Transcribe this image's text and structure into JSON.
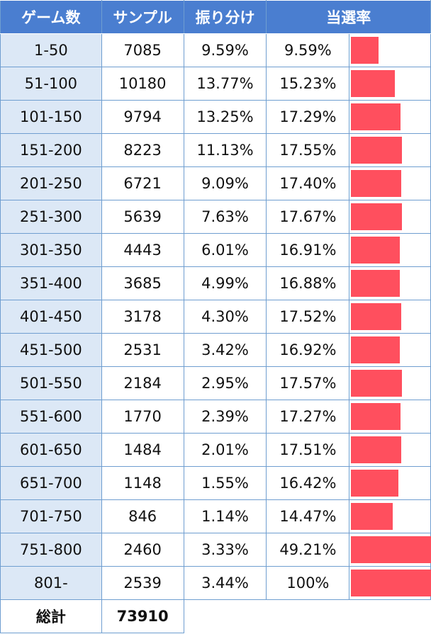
{
  "table": {
    "headers": [
      "ゲーム数",
      "サンプル",
      "振り分け",
      "当選率"
    ],
    "rows": [
      {
        "range": "1-50",
        "sample": "7085",
        "share": "9.59%",
        "rate": "9.59%",
        "rate_value": 9.59
      },
      {
        "range": "51-100",
        "sample": "10180",
        "share": "13.77%",
        "rate": "15.23%",
        "rate_value": 15.23
      },
      {
        "range": "101-150",
        "sample": "9794",
        "share": "13.25%",
        "rate": "17.29%",
        "rate_value": 17.29
      },
      {
        "range": "151-200",
        "sample": "8223",
        "share": "11.13%",
        "rate": "17.55%",
        "rate_value": 17.55
      },
      {
        "range": "201-250",
        "sample": "6721",
        "share": "9.09%",
        "rate": "17.40%",
        "rate_value": 17.4
      },
      {
        "range": "251-300",
        "sample": "5639",
        "share": "7.63%",
        "rate": "17.67%",
        "rate_value": 17.67
      },
      {
        "range": "301-350",
        "sample": "4443",
        "share": "6.01%",
        "rate": "16.91%",
        "rate_value": 16.91
      },
      {
        "range": "351-400",
        "sample": "3685",
        "share": "4.99%",
        "rate": "16.88%",
        "rate_value": 16.88
      },
      {
        "range": "401-450",
        "sample": "3178",
        "share": "4.30%",
        "rate": "17.52%",
        "rate_value": 17.52
      },
      {
        "range": "451-500",
        "sample": "2531",
        "share": "3.42%",
        "rate": "16.92%",
        "rate_value": 16.92
      },
      {
        "range": "501-550",
        "sample": "2184",
        "share": "2.95%",
        "rate": "17.57%",
        "rate_value": 17.57
      },
      {
        "range": "551-600",
        "sample": "1770",
        "share": "2.39%",
        "rate": "17.27%",
        "rate_value": 17.27
      },
      {
        "range": "601-650",
        "sample": "1484",
        "share": "2.01%",
        "rate": "17.51%",
        "rate_value": 17.51
      },
      {
        "range": "651-700",
        "sample": "1148",
        "share": "1.55%",
        "rate": "16.42%",
        "rate_value": 16.42
      },
      {
        "range": "701-750",
        "sample": "846",
        "share": "1.14%",
        "rate": "14.47%",
        "rate_value": 14.47
      },
      {
        "range": "751-800",
        "sample": "2460",
        "share": "3.33%",
        "rate": "49.21%",
        "rate_value": 49.21
      },
      {
        "range": "801-",
        "sample": "2539",
        "share": "3.44%",
        "rate": "100%",
        "rate_value": 100
      }
    ],
    "total_label": "総計",
    "total_value": "73910",
    "bar_color": "#ff4f5e",
    "header_color": "#4a7ed0",
    "range_cell_color": "#dce8f6"
  }
}
